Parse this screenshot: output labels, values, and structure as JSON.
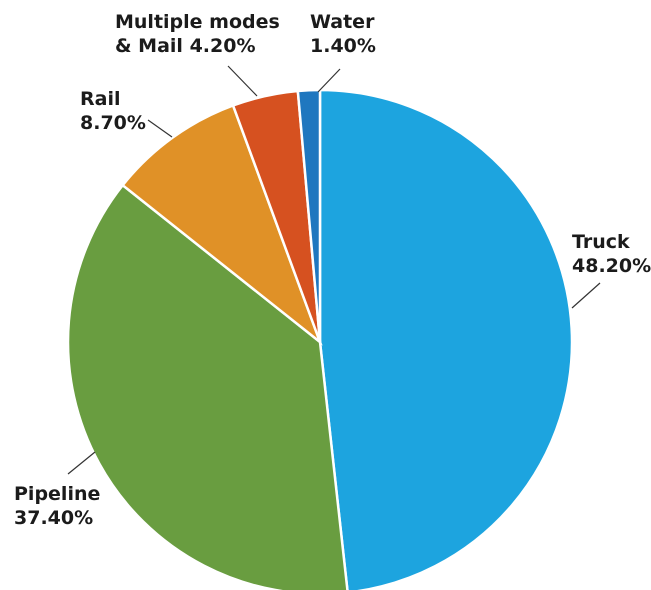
{
  "chart_data": {
    "type": "pie",
    "title": "",
    "start_angle_deg": 0,
    "direction": "clockwise",
    "slices": [
      {
        "name": "Truck",
        "value": 48.2,
        "value_label": "48.20%",
        "color": "#1da4df"
      },
      {
        "name": "Pipeline",
        "value": 37.4,
        "value_label": "37.40%",
        "color": "#699d40"
      },
      {
        "name": "Rail",
        "value": 8.7,
        "value_label": "8.70%",
        "color": "#e09127"
      },
      {
        "name": "Multiple modes & Mail",
        "value": 4.2,
        "value_label": "4.20%",
        "color": "#d65120"
      },
      {
        "name": "Water",
        "value": 1.4,
        "value_label": "1.40%",
        "color": "#1f77bf"
      }
    ]
  }
}
